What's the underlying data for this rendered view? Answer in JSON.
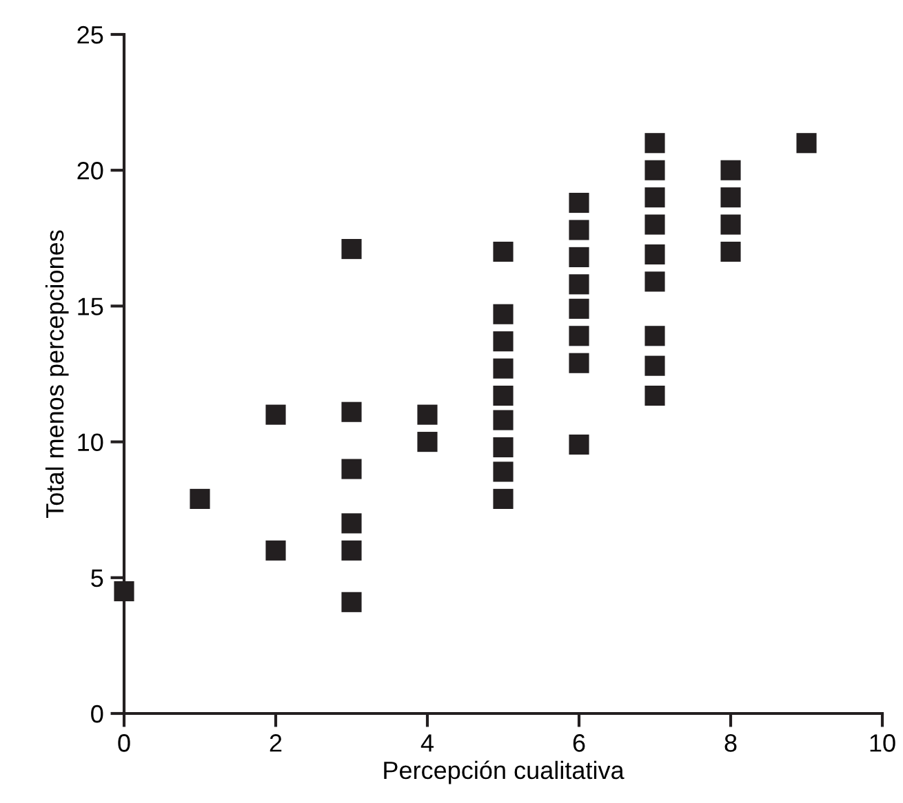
{
  "chart_data": {
    "type": "scatter",
    "xlabel": "Percepción cualitativa",
    "ylabel": "Total menos percepciones",
    "xlim": [
      0,
      10
    ],
    "ylim": [
      0,
      25
    ],
    "xticks": [
      0,
      2,
      4,
      6,
      8,
      10
    ],
    "yticks": [
      0,
      5,
      10,
      15,
      20,
      25
    ],
    "marker": "square",
    "grid": false,
    "legend": false,
    "series": [
      {
        "color": "#231f20",
        "x": [
          0,
          1,
          2,
          2,
          3,
          3,
          3,
          3,
          3,
          3,
          4,
          4,
          5,
          5,
          5,
          5,
          5,
          5,
          5,
          5,
          5,
          6,
          6,
          6,
          6,
          6,
          6,
          6,
          6,
          7,
          7,
          7,
          7,
          7,
          7,
          7,
          7,
          7,
          8,
          8,
          8,
          8,
          9
        ],
        "values": [
          4.5,
          7.9,
          11,
          6,
          17.1,
          11.1,
          9,
          7,
          6,
          4.1,
          11,
          10,
          17,
          14.7,
          13.7,
          12.7,
          11.7,
          10.8,
          9.8,
          8.9,
          7.9,
          18.8,
          17.8,
          16.8,
          15.8,
          14.9,
          13.9,
          12.9,
          9.9,
          21,
          20,
          19,
          18,
          16.9,
          15.9,
          13.9,
          12.8,
          11.7,
          20,
          19,
          18,
          17,
          21
        ]
      }
    ]
  }
}
